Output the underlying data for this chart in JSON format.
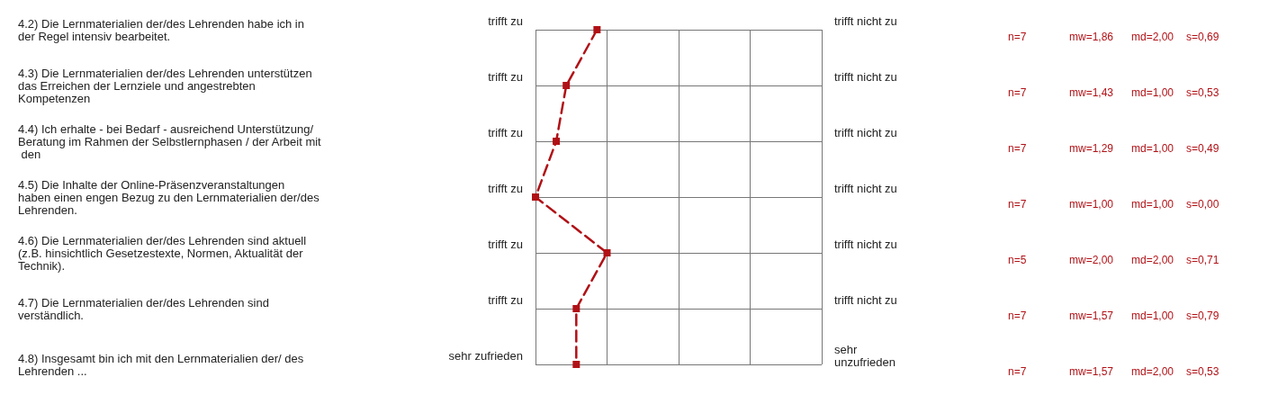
{
  "chart_data": {
    "type": "line",
    "orientation": "horizontal",
    "categories": [
      "4.2) Die Lernmaterialien der/des Lehrenden habe ich in der Regel intensiv bearbeitet.",
      "4.3) Die Lernmaterialien der/des Lehrenden unterstützen das Erreichen der Lernziele und angestrebten Kompetenzen",
      "4.4) Ich erhalte - bei Bedarf - ausreichend Unterstützung/Beratung im Rahmen der Selbstlernphasen / der Arbeit mit den",
      "4.5) Die Inhalte der Online-Präsenzveranstaltungen haben einen engen Bezug zu den Lernmaterialien der/des Lehrenden.",
      "4.6) Die Lernmaterialien der/des Lehrenden sind aktuell (z.B. hinsichtlich Gesetzestexte, Normen, Aktualität der Technik).",
      "4.7) Die Lernmaterialien der/des Lehrenden sind verständlich.",
      "4.8) Insgesamt bin ich mit den Lernmaterialien der/ des Lehrenden ..."
    ],
    "values": [
      1.86,
      1.43,
      1.29,
      1.0,
      2.0,
      1.57,
      1.57
    ],
    "color": "#b01116",
    "marker": "square",
    "line_style": "dashed",
    "grid": true,
    "xlim": [
      1,
      5
    ],
    "xticks": [
      {
        "value": 1,
        "label": null
      },
      {
        "value": 2,
        "label": null
      },
      {
        "value": 3,
        "label": null
      },
      {
        "value": 4,
        "label": null
      },
      {
        "value": 5,
        "label": null
      }
    ],
    "value_labels": [
      "mw=1,86",
      "mw=1,43",
      "mw=1,29",
      "mw=1,00",
      "mw=2,00",
      "mw=1,57",
      "mw=1,57"
    ],
    "annotations": [
      "trifft zu",
      "trifft nicht zu",
      "n=7",
      "md=2,00",
      "s=0,69",
      "trifft zu",
      "trifft nicht zu",
      "n=7",
      "md=1,00",
      "s=0,53",
      "trifft zu",
      "trifft nicht zu",
      "n=7",
      "md=1,00",
      "s=0,49",
      "trifft zu",
      "trifft nicht zu",
      "n=7",
      "md=1,00",
      "s=0,00",
      "trifft zu",
      "trifft nicht zu",
      "n=5",
      "md=2,00",
      "s=0,71",
      "trifft zu",
      "trifft nicht zu",
      "n=7",
      "md=1,00",
      "s=0,79",
      "sehr zufrieden",
      "sehr unzufrieden",
      "n=7",
      "md=2,00",
      "s=0,53"
    ]
  }
}
